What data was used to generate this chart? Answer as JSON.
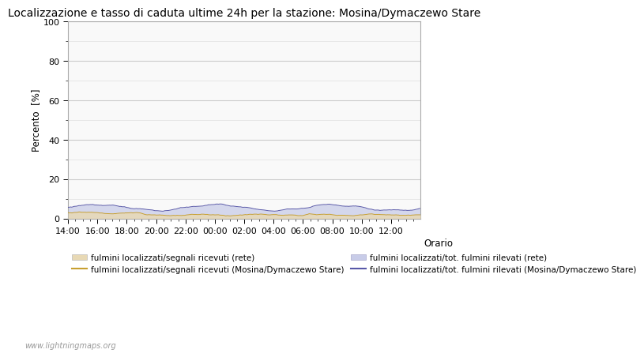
{
  "title": "Localizzazione e tasso di caduta ultime 24h per la stazione: Mosina/Dymaczewo Stare",
  "ylabel": "Percento  [%]",
  "xlabel_right": "Orario",
  "watermark": "www.lightningmaps.org",
  "xtick_labels": [
    "14:00",
    "16:00",
    "18:00",
    "20:00",
    "22:00",
    "00:00",
    "02:00",
    "04:00",
    "06:00",
    "08:00",
    "10:00",
    "12:00"
  ],
  "ytick_major": [
    0,
    20,
    40,
    60,
    80,
    100
  ],
  "ytick_minor": [
    10,
    30,
    50,
    70,
    90
  ],
  "ylim": [
    0,
    100
  ],
  "grid_major_color": "#cccccc",
  "grid_minor_color": "#e0e0e0",
  "bg_color": "#ffffff",
  "plot_bg_color": "#f9f9f9",
  "fill_rete_color": "#e8d9b5",
  "fill_rete_alpha": 0.85,
  "fill_station_color": "#c8cce8",
  "fill_station_alpha": 0.75,
  "line_rete_color": "#c8a030",
  "line_station_color": "#5858a8",
  "legend_labels": [
    "fulmini localizzati/segnali ricevuti (rete)",
    "fulmini localizzati/segnali ricevuti (Mosina/Dymaczewo Stare)",
    "fulmini localizzati/tot. fulmini rilevati (rete)",
    "fulmini localizzati/tot. fulmini rilevati (Mosina/Dymaczewo Stare)"
  ],
  "n_points": 289,
  "title_fontsize": 10,
  "axis_fontsize": 8.5,
  "tick_fontsize": 8,
  "legend_fontsize": 7.5
}
